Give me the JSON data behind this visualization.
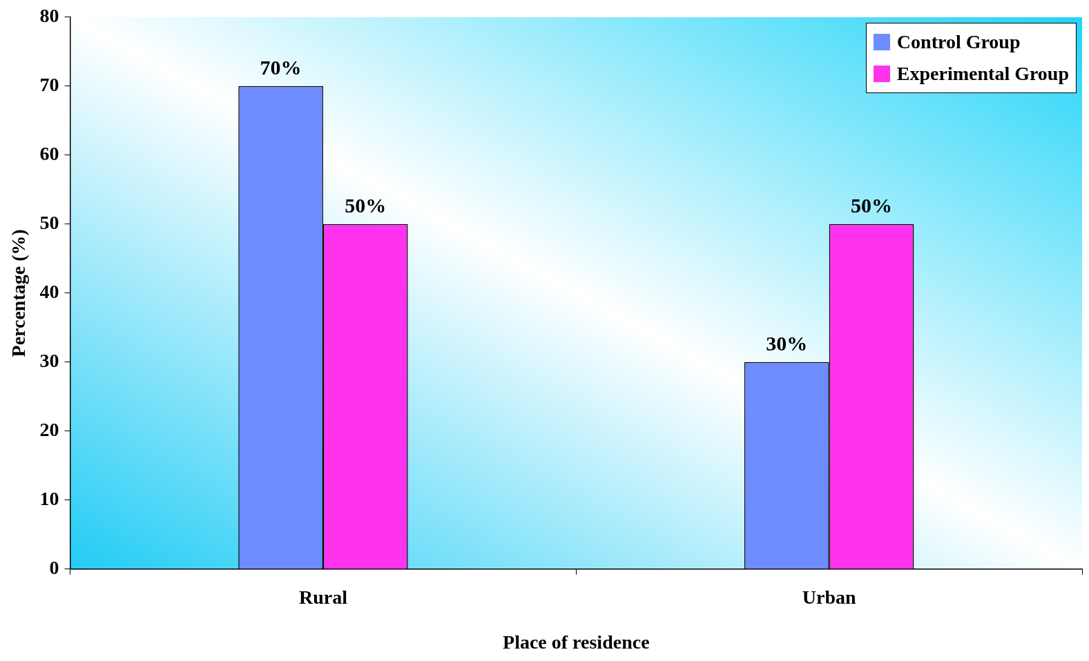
{
  "chart_data": {
    "type": "bar",
    "xlabel": "Place of residence",
    "ylabel": "Percentage (%)",
    "categories": [
      "Rural",
      "Urban"
    ],
    "series": [
      {
        "name": "Control Group",
        "color": "#6f8cff",
        "values": [
          70,
          30
        ],
        "value_labels": [
          "70%",
          "30%"
        ]
      },
      {
        "name": "Experimental Group",
        "color": "#ff33ee",
        "values": [
          50,
          50
        ],
        "value_labels": [
          "50%",
          "50%"
        ]
      }
    ],
    "ylim": [
      0,
      80
    ],
    "yticks": [
      0,
      10,
      20,
      30,
      40,
      50,
      60,
      70,
      80
    ],
    "grid": false,
    "legend": "top right"
  }
}
